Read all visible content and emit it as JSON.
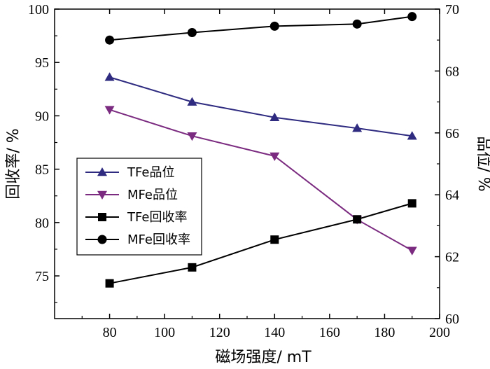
{
  "chart_data": {
    "type": "line",
    "x": [
      80,
      110,
      140,
      170,
      190
    ],
    "xlim": [
      60,
      200
    ],
    "xticks": [
      80,
      100,
      120,
      140,
      160,
      180,
      200
    ],
    "xlabel": "磁场强度/ mT",
    "ylabel_left": "回收率/ %",
    "ylabel_right": "品位/ %",
    "ylim_left": [
      71,
      100
    ],
    "yticks_left": [
      75,
      80,
      85,
      90,
      95,
      100
    ],
    "ylim_right": [
      60,
      70
    ],
    "yticks_right": [
      60,
      62,
      64,
      66,
      68,
      70
    ],
    "series": [
      {
        "name": "TFe品位",
        "axis": "right",
        "marker": "triangle-up",
        "color": "#2e2b80",
        "values": [
          67.8,
          67.0,
          66.5,
          66.15,
          65.9
        ]
      },
      {
        "name": "MFe品位",
        "axis": "right",
        "marker": "triangle-down",
        "color": "#7b2b80",
        "values": [
          66.75,
          65.9,
          65.25,
          63.2,
          62.2
        ]
      },
      {
        "name": "TFe回收率",
        "axis": "left",
        "marker": "square",
        "color": "#000000",
        "values": [
          74.3,
          75.8,
          78.4,
          80.3,
          81.8
        ]
      },
      {
        "name": "MFe回收率",
        "axis": "left",
        "marker": "circle",
        "color": "#000000",
        "values": [
          97.1,
          97.8,
          98.4,
          98.6,
          99.3
        ]
      }
    ],
    "legend": {
      "position": "center-left"
    },
    "grid": false
  }
}
